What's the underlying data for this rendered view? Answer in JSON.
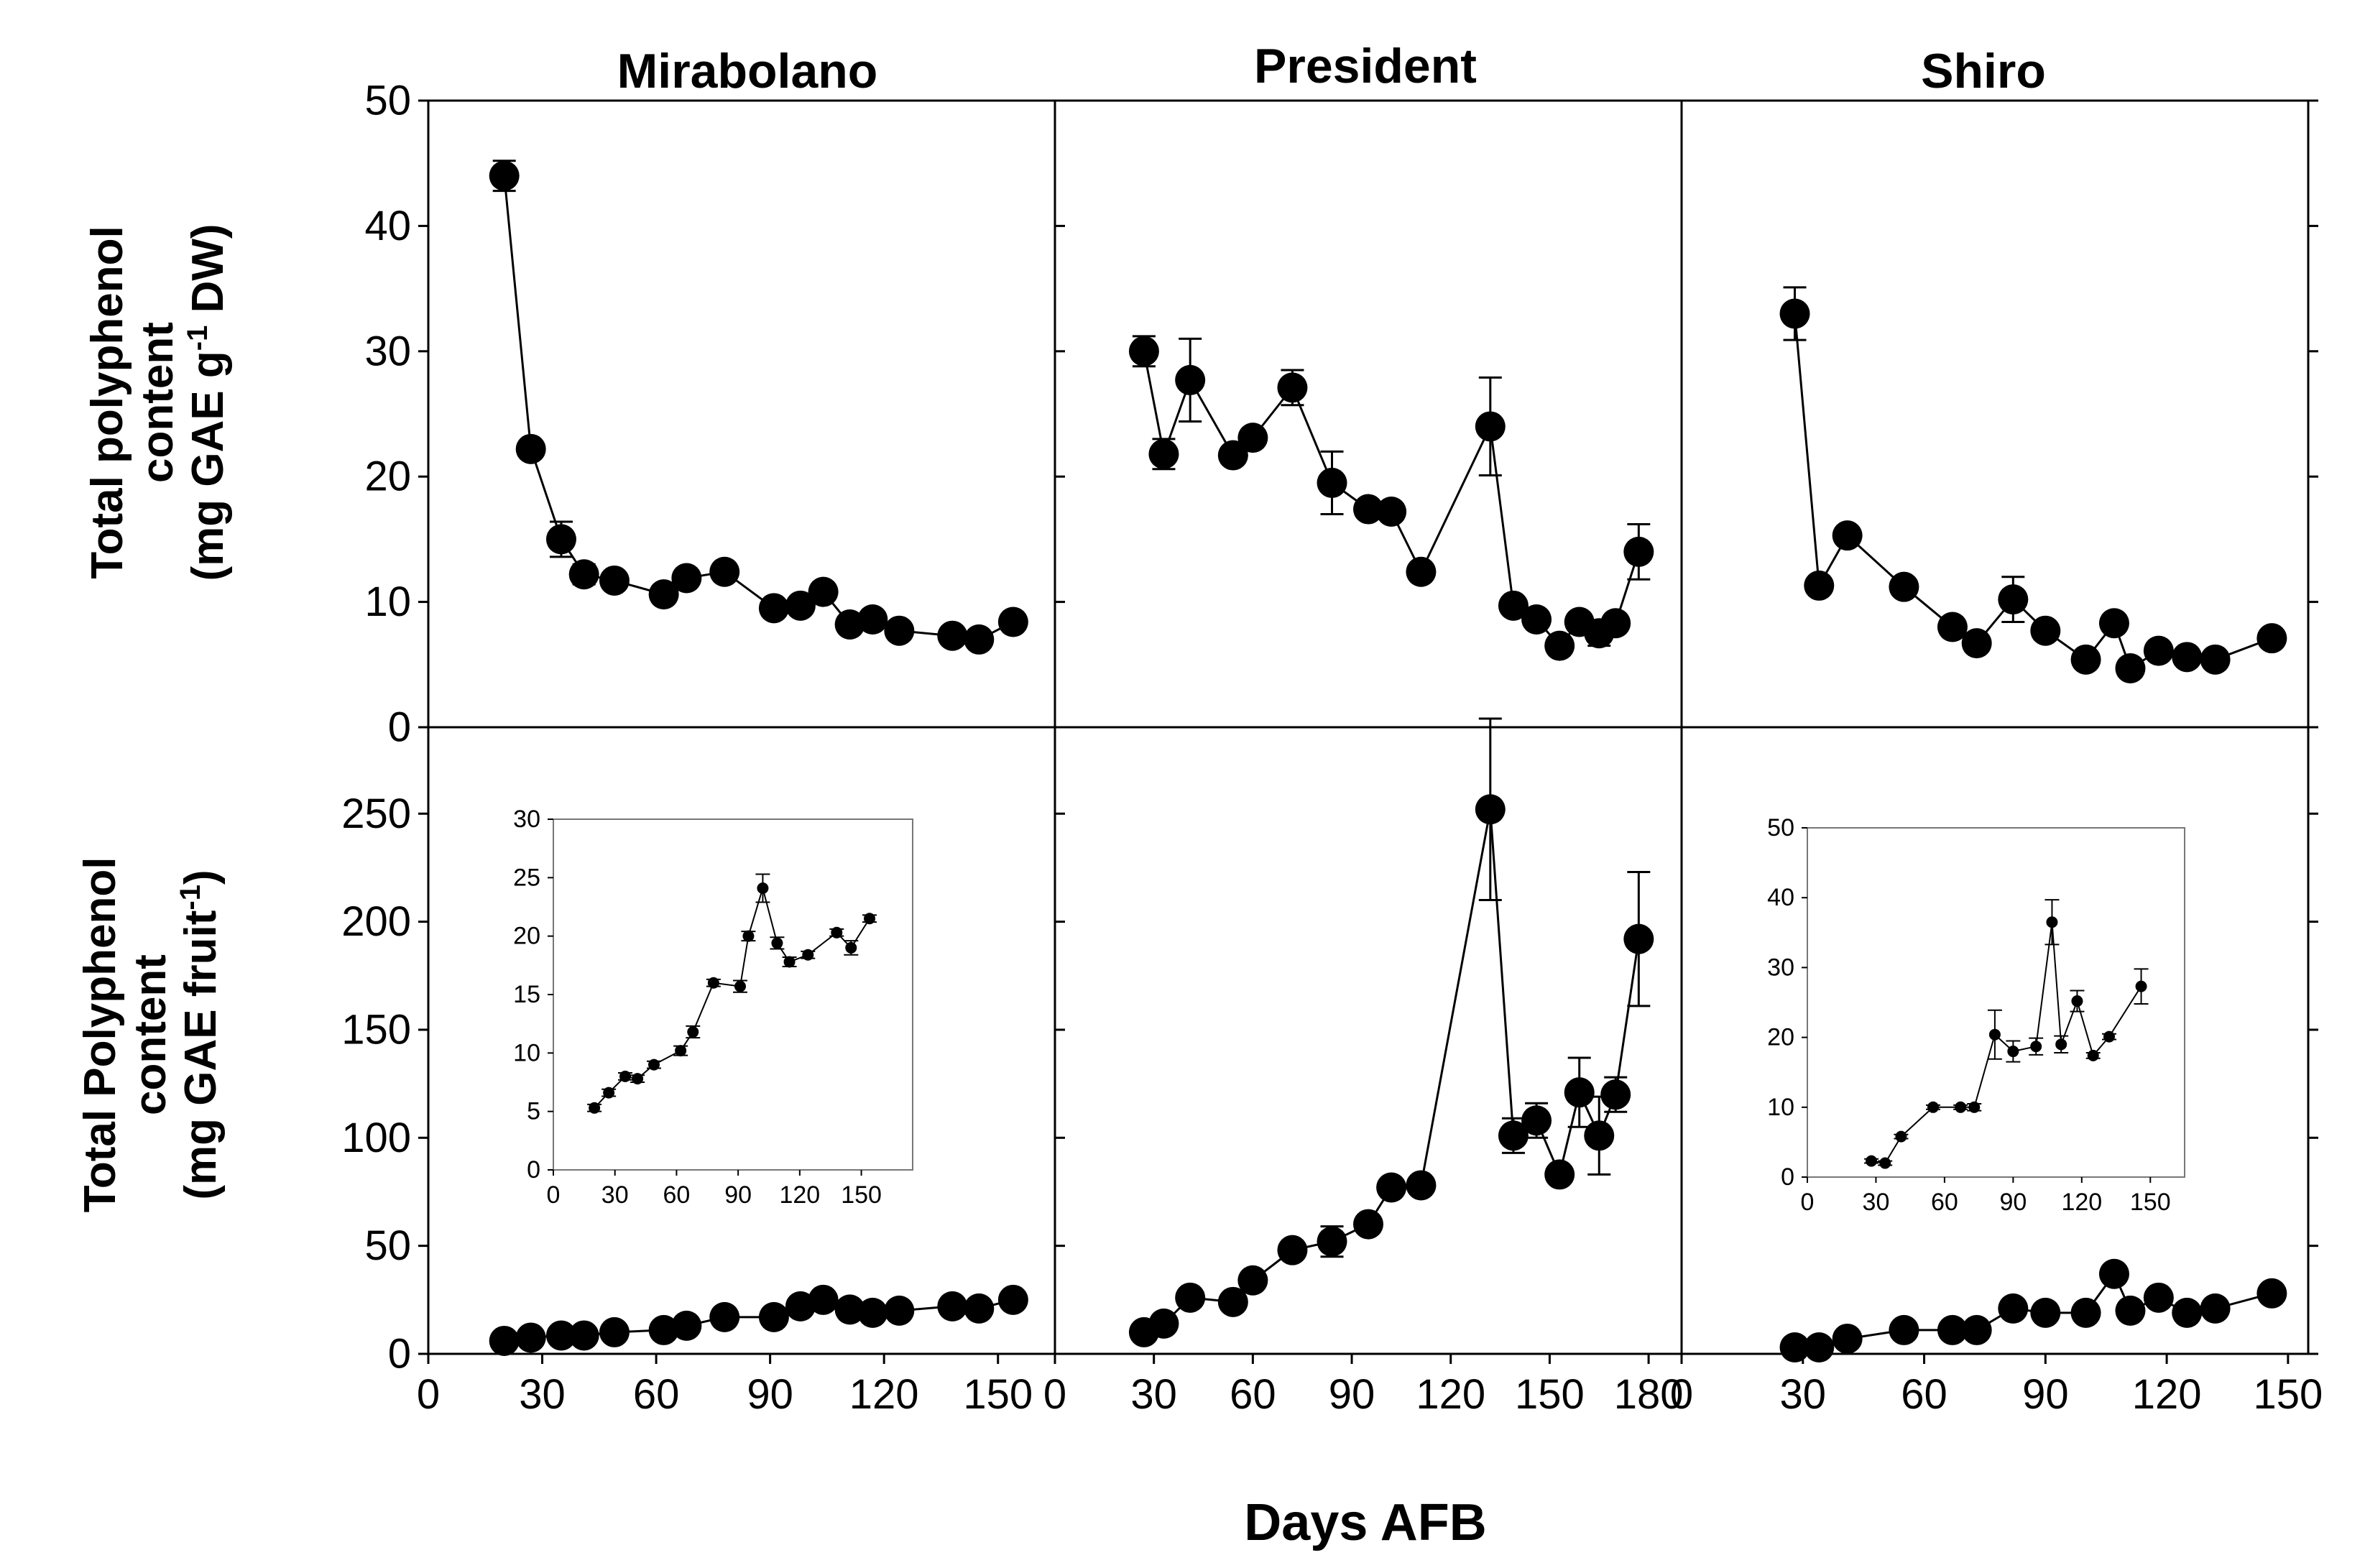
{
  "figure": {
    "xlabel": "Days AFB",
    "row_labels": {
      "top": {
        "line1": "Total polyphenol",
        "line2": "content",
        "line3_pre": "(mg GAE g",
        "line3_sup": "-1",
        "line3_post": " DW)"
      },
      "bottom": {
        "line1": "Total Polyphenol",
        "line2": "content",
        "line3_pre": "(mg GAE fruit",
        "line3_sup": "-1",
        "line3_post": ")"
      }
    }
  },
  "chart_data": [
    {
      "id": "mir_dw",
      "type": "line",
      "title": "Mirabolano",
      "xlabel": "",
      "ylabel": "",
      "xlim": [
        0,
        165
      ],
      "ylim": [
        0,
        50
      ],
      "xticks": [],
      "xtick_labels": [],
      "yticks": [
        0,
        10,
        20,
        30,
        40,
        50
      ],
      "ytick_labels": [
        "0",
        "10",
        "20",
        "30",
        "40",
        "50"
      ],
      "x": [
        20,
        27,
        35,
        41,
        49,
        62,
        68,
        78,
        91,
        98,
        104,
        111,
        117,
        124,
        138,
        145,
        154
      ],
      "y": [
        44,
        22.2,
        15,
        12.2,
        11.7,
        10.6,
        11.9,
        12.4,
        9.5,
        9.7,
        10.8,
        8.2,
        8.6,
        7.7,
        7.3,
        7,
        8.4
      ],
      "err": [
        1.2,
        0.5,
        1.4,
        0.8,
        0.5,
        0.6,
        0.5,
        0.5,
        0.5,
        0.4,
        0.5,
        0.5,
        0.6,
        0.4,
        0.5,
        0.4,
        0.5
      ]
    },
    {
      "id": "pres_dw",
      "type": "line",
      "title": "President",
      "xlabel": "",
      "ylabel": "",
      "xlim": [
        0,
        190
      ],
      "ylim": [
        0,
        50
      ],
      "xticks": [],
      "xtick_labels": [],
      "yticks": [],
      "ytick_labels": [],
      "x": [
        27,
        33,
        41,
        54,
        60,
        72,
        84,
        95,
        102,
        111,
        132,
        139,
        146,
        153,
        159,
        165,
        170,
        177
      ],
      "y": [
        30,
        21.8,
        27.7,
        21.7,
        23.1,
        27.1,
        19.5,
        17.4,
        17.2,
        12.4,
        24,
        9.7,
        8.6,
        6.5,
        8.4,
        7.5,
        8.3,
        14
      ],
      "err": [
        1.2,
        1.2,
        3.3,
        0.5,
        0.6,
        1.4,
        2.5,
        0.5,
        0.5,
        0.5,
        3.9,
        0.6,
        0.5,
        0.5,
        0.6,
        1,
        0.5,
        2.2
      ]
    },
    {
      "id": "shiro_dw",
      "type": "line",
      "title": "Shiro",
      "xlabel": "",
      "ylabel": "",
      "xlim": [
        0,
        155
      ],
      "ylim": [
        0,
        50
      ],
      "xticks": [],
      "xtick_labels": [],
      "yticks": [],
      "ytick_labels": [],
      "x": [
        28,
        34,
        41,
        55,
        67,
        73,
        82,
        90,
        100,
        107,
        111,
        118,
        125,
        132,
        146
      ],
      "y": [
        33,
        11.3,
        15.3,
        11.2,
        8,
        6.7,
        10.2,
        7.7,
        5.4,
        8.3,
        4.7,
        6.1,
        5.6,
        5.4,
        7.1
      ],
      "err": [
        2.1,
        0.5,
        0.5,
        0.5,
        0.5,
        0.5,
        1.8,
        0.5,
        0.4,
        0.6,
        0.4,
        0.4,
        0.4,
        0.4,
        0.4
      ]
    },
    {
      "id": "mir_fr",
      "type": "line",
      "title": "",
      "xlabel": "",
      "ylabel": "",
      "xlim": [
        0,
        165
      ],
      "ylim": [
        0,
        290
      ],
      "xticks": [
        0,
        30,
        60,
        90,
        120,
        150
      ],
      "xtick_labels": [
        "0",
        "30",
        "60",
        "90",
        "120",
        "150"
      ],
      "yticks": [
        0,
        50,
        100,
        150,
        200,
        250
      ],
      "ytick_labels": [
        "0",
        "50",
        "100",
        "150",
        "200",
        "250"
      ],
      "x": [
        20,
        27,
        35,
        41,
        49,
        62,
        68,
        78,
        91,
        98,
        104,
        111,
        117,
        124,
        138,
        145,
        154
      ],
      "y": [
        6,
        7.5,
        8.5,
        8.5,
        10,
        11,
        13,
        17,
        17,
        22,
        25,
        20.5,
        19,
        20,
        22,
        21,
        25
      ],
      "err": [
        0.5,
        0.5,
        0.5,
        0.5,
        0.5,
        0.5,
        0.8,
        0.5,
        0.5,
        1,
        1.2,
        0.6,
        0.5,
        0.5,
        0.5,
        0.7,
        0.5
      ]
    },
    {
      "id": "pres_fr",
      "type": "line",
      "title": "",
      "xlabel": "",
      "ylabel": "",
      "xlim": [
        0,
        190
      ],
      "ylim": [
        0,
        290
      ],
      "xticks": [
        0,
        30,
        60,
        90,
        120,
        150,
        180
      ],
      "xtick_labels": [
        "0",
        "30",
        "60",
        "90",
        "120",
        "150",
        "180"
      ],
      "yticks": [],
      "ytick_labels": [],
      "x": [
        27,
        33,
        41,
        54,
        60,
        72,
        84,
        95,
        102,
        111,
        132,
        139,
        146,
        153,
        159,
        165,
        170,
        177
      ],
      "y": [
        10,
        14,
        26,
        24,
        34,
        48,
        52,
        60,
        77,
        78,
        252,
        101,
        108,
        83,
        121,
        101,
        120,
        192
      ],
      "err": [
        1,
        1.5,
        1.5,
        1.5,
        2,
        2,
        7,
        2,
        2,
        2,
        42,
        8,
        8,
        2,
        16,
        18,
        8,
        31
      ]
    },
    {
      "id": "shiro_fr",
      "type": "line",
      "title": "",
      "xlabel": "",
      "ylabel": "",
      "xlim": [
        0,
        155
      ],
      "ylim": [
        0,
        290
      ],
      "xticks": [
        0,
        30,
        60,
        90,
        120,
        150
      ],
      "xtick_labels": [
        "0",
        "30",
        "60",
        "90",
        "120",
        "150"
      ],
      "yticks": [],
      "ytick_labels": [],
      "x": [
        28,
        34,
        41,
        55,
        67,
        73,
        82,
        90,
        100,
        107,
        111,
        118,
        125,
        132,
        146
      ],
      "y": [
        3,
        3,
        7,
        11,
        11,
        11,
        21,
        19,
        19,
        37,
        20,
        26,
        19,
        21,
        28
      ],
      "err": [
        0.5,
        0.5,
        0.5,
        0.5,
        0.5,
        0.5,
        1,
        1,
        1,
        2,
        1,
        1,
        0.5,
        0.5,
        1
      ]
    },
    {
      "id": "mir_inset",
      "type": "line",
      "title": "",
      "xlabel": "",
      "ylabel": "",
      "xlim": [
        0,
        175
      ],
      "ylim": [
        0,
        30
      ],
      "xticks": [
        0,
        30,
        60,
        90,
        120,
        150
      ],
      "xtick_labels": [
        "0",
        "30",
        "60",
        "90",
        "120",
        "150"
      ],
      "yticks": [
        0,
        5,
        10,
        15,
        20,
        25,
        30
      ],
      "ytick_labels": [
        "0",
        "5",
        "10",
        "15",
        "20",
        "25",
        "30"
      ],
      "x": [
        20,
        27,
        35,
        41,
        49,
        62,
        68,
        78,
        91,
        95,
        102,
        109,
        115,
        124,
        138,
        145,
        154
      ],
      "y": [
        5.3,
        6.6,
        8,
        7.8,
        9,
        10.2,
        11.8,
        16,
        15.7,
        20,
        24.1,
        19.4,
        17.8,
        18.4,
        20.3,
        19,
        21.5
      ],
      "err": [
        0.3,
        0.3,
        0.3,
        0.3,
        0.3,
        0.4,
        0.5,
        0.3,
        0.5,
        0.4,
        1.2,
        0.5,
        0.4,
        0.3,
        0.3,
        0.6,
        0.3
      ]
    },
    {
      "id": "shiro_inset",
      "type": "line",
      "title": "",
      "xlabel": "",
      "ylabel": "",
      "xlim": [
        0,
        165
      ],
      "ylim": [
        0,
        50
      ],
      "xticks": [
        0,
        30,
        60,
        90,
        120,
        150
      ],
      "xtick_labels": [
        "0",
        "30",
        "60",
        "90",
        "120",
        "150"
      ],
      "yticks": [
        0,
        10,
        20,
        30,
        40,
        50
      ],
      "ytick_labels": [
        "0",
        "10",
        "20",
        "30",
        "40",
        "50"
      ],
      "x": [
        28,
        34,
        41,
        55,
        67,
        73,
        82,
        90,
        100,
        107,
        111,
        118,
        125,
        132,
        146
      ],
      "y": [
        2.3,
        2,
        5.8,
        10,
        10,
        10,
        20.4,
        18,
        18.7,
        36.5,
        19,
        25.2,
        17.4,
        20.1,
        27.3
      ],
      "err": [
        0.3,
        0.3,
        0.3,
        0.3,
        0.3,
        0.5,
        3.5,
        1.5,
        1.2,
        3.2,
        1.2,
        1.5,
        0.4,
        0.4,
        2.5
      ]
    }
  ]
}
